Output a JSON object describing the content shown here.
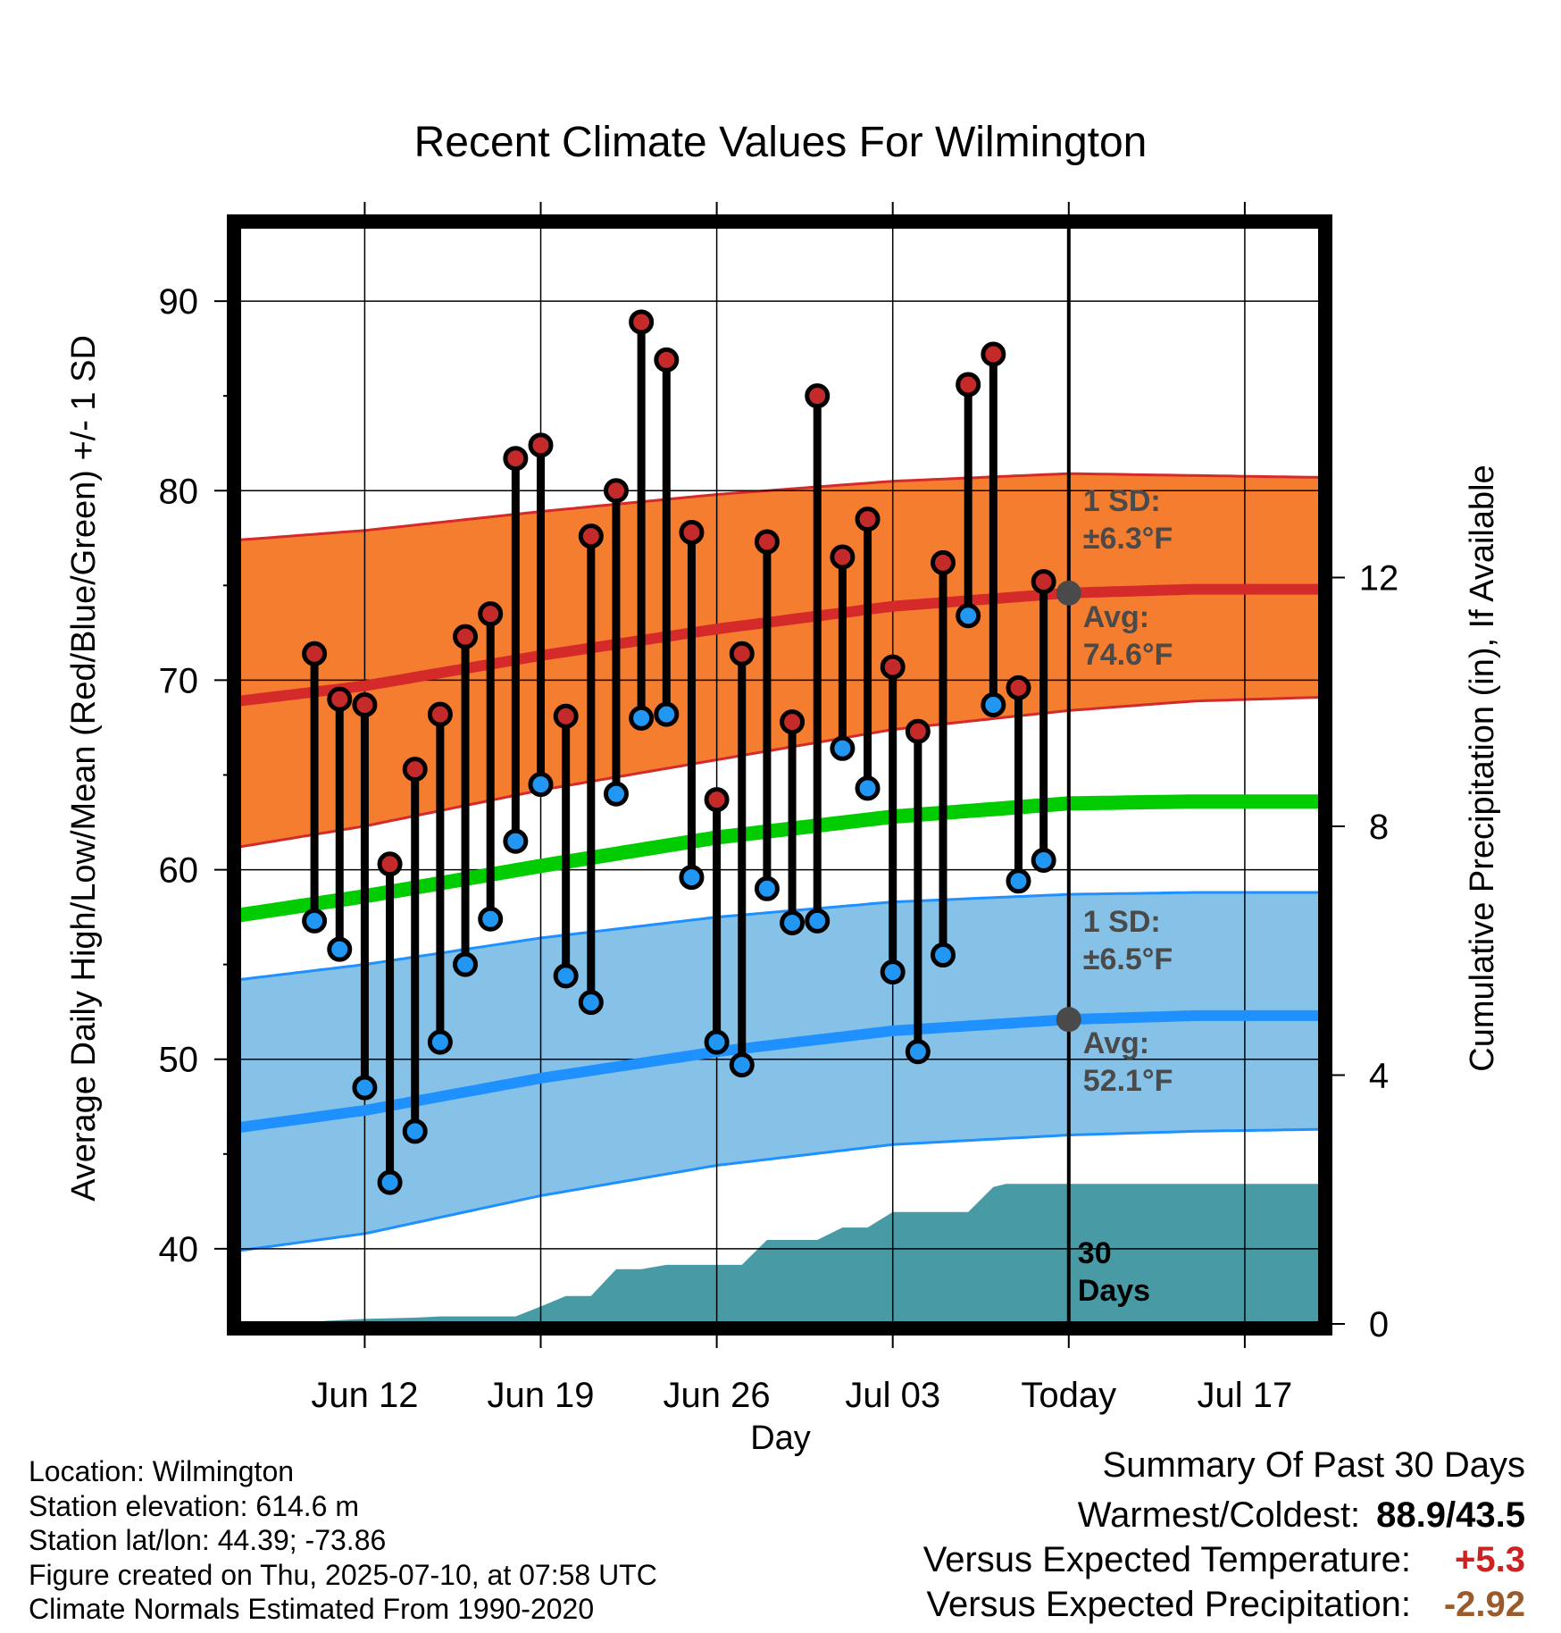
{
  "chart_data": {
    "type": "line",
    "title": "Recent Climate Values For Wilmington",
    "xlabel": "Day",
    "ylabel_left": "Average Daily High/Low/Mean (Red/Blue/Green) +/- 1 SD",
    "ylabel_right": "Cumulative Precipitation (in), If Available",
    "x_range_days": [
      -33.2,
      10.2
    ],
    "x_ticks": [
      {
        "day": -28,
        "label": "Jun 12"
      },
      {
        "day": -21,
        "label": "Jun 19"
      },
      {
        "day": -14,
        "label": "Jun 26"
      },
      {
        "day": -7,
        "label": "Jul 03"
      },
      {
        "day": 0,
        "label": "Today"
      },
      {
        "day": 7,
        "label": "Jul 17"
      }
    ],
    "y_left_range": [
      35.8,
      94.2
    ],
    "y_left_ticks": [
      40,
      50,
      60,
      70,
      80,
      90
    ],
    "y_right_range": [
      0,
      16
    ],
    "y_right_ticks": [
      0,
      4,
      8,
      12
    ],
    "grid": true,
    "today_day": 0,
    "normals": {
      "x": [
        -33,
        -28,
        -21,
        -14,
        -7,
        0,
        5,
        10
      ],
      "high_mean": [
        68.9,
        69.7,
        71.3,
        72.7,
        73.9,
        74.6,
        74.8,
        74.8
      ],
      "high_upper": [
        77.4,
        77.9,
        78.9,
        79.8,
        80.5,
        80.9,
        80.8,
        80.7
      ],
      "high_lower": [
        61.2,
        62.3,
        64.2,
        65.8,
        67.4,
        68.4,
        68.9,
        69.1
      ],
      "mean": [
        57.6,
        58.6,
        60.2,
        61.7,
        62.8,
        63.5,
        63.6,
        63.6
      ],
      "low_mean": [
        46.4,
        47.3,
        49.0,
        50.4,
        51.5,
        52.1,
        52.3,
        52.3
      ],
      "low_upper": [
        54.2,
        55.0,
        56.4,
        57.5,
        58.3,
        58.7,
        58.8,
        58.8
      ],
      "low_lower": [
        39.9,
        40.8,
        42.8,
        44.4,
        45.5,
        46.0,
        46.2,
        46.3
      ]
    },
    "daily": {
      "day_offset": [
        -30,
        -29,
        -28,
        -27,
        -26,
        -25,
        -24,
        -23,
        -22,
        -21,
        -20,
        -19,
        -18,
        -17,
        -16,
        -15,
        -14,
        -13,
        -12,
        -11,
        -10,
        -9,
        -8,
        -7,
        -6,
        -5,
        -4,
        -3,
        -2,
        -1
      ],
      "high": [
        71.4,
        69.0,
        68.7,
        60.3,
        65.3,
        68.2,
        72.3,
        73.5,
        81.7,
        82.4,
        68.1,
        77.6,
        80.0,
        88.9,
        86.9,
        77.8,
        63.7,
        71.4,
        77.3,
        67.8,
        85.0,
        76.5,
        78.5,
        70.7,
        67.3,
        76.2,
        85.6,
        87.2,
        69.6,
        75.2
      ],
      "low": [
        57.3,
        55.8,
        48.5,
        43.5,
        46.2,
        50.9,
        55.0,
        57.4,
        61.5,
        64.5,
        54.4,
        53.0,
        64.0,
        68.0,
        68.2,
        59.6,
        50.9,
        49.7,
        59.0,
        57.2,
        57.3,
        66.4,
        64.3,
        54.6,
        50.4,
        55.5,
        73.4,
        68.7,
        59.4,
        60.5
      ]
    },
    "precip": {
      "x": [
        -33.2,
        -30.5,
        -29.5,
        -28.0,
        -26.0,
        -25.0,
        -22.0,
        -21.0,
        -20.0,
        -19.0,
        -18.0,
        -17.0,
        -16.0,
        -15.0,
        -14.0,
        -13.0,
        -12.0,
        -11.0,
        -10.0,
        -9.0,
        -8.0,
        -7.0,
        -6.0,
        -5.0,
        -4.0,
        -3.0,
        -2.5,
        -2.0,
        -1.0,
        0.0,
        10.2
      ],
      "cumulative_in": [
        0.0,
        0.02,
        0.05,
        0.08,
        0.1,
        0.12,
        0.12,
        0.28,
        0.45,
        0.45,
        0.88,
        0.88,
        0.95,
        0.95,
        0.95,
        0.95,
        1.35,
        1.35,
        1.35,
        1.55,
        1.55,
        1.8,
        1.8,
        1.8,
        1.8,
        2.2,
        2.25,
        2.25,
        2.25,
        2.25,
        2.25
      ]
    },
    "annotations": [
      {
        "text_line1": "1 SD:",
        "text_line2": "±6.3°F",
        "series": "high"
      },
      {
        "text_line1": "Avg:",
        "text_line2": "74.6°F",
        "series": "high"
      },
      {
        "text_line1": "1 SD:",
        "text_line2": "±6.5°F",
        "series": "low"
      },
      {
        "text_line1": "Avg:",
        "text_line2": "52.1°F",
        "series": "low"
      },
      {
        "text_line1": "30",
        "text_line2": "Days",
        "series": "precip"
      }
    ],
    "colors": {
      "high_band": "#f47d30",
      "high_line": "#d42a2a",
      "low_band": "#86c2e8",
      "low_line": "#1e90ff",
      "mean_line": "#00cc00",
      "precip_fill": "#489ba4",
      "high_dot": "#c42a2a",
      "low_dot": "#2196f3",
      "avg_marker": "#4a4a4a"
    }
  },
  "footer": {
    "location": "Location: Wilmington",
    "elevation": "Station elevation: 614.6 m",
    "latlon": "Station lat/lon: 44.39; -73.86",
    "created": "Figure created on Thu, 2025-07-10, at 07:58 UTC",
    "normals": "Climate Normals Estimated From 1990-2020"
  },
  "summary": {
    "title": "Summary Of Past 30 Days",
    "warm_cold_label": "Warmest/Coldest:",
    "warm_cold_value": "88.9/43.5",
    "temp_label": "Versus Expected Temperature:",
    "temp_value": "+5.3",
    "temp_color": "#cc2222",
    "precip_label": "Versus Expected Precipitation:",
    "precip_value": "-2.92",
    "precip_color": "#9a5a2a"
  }
}
